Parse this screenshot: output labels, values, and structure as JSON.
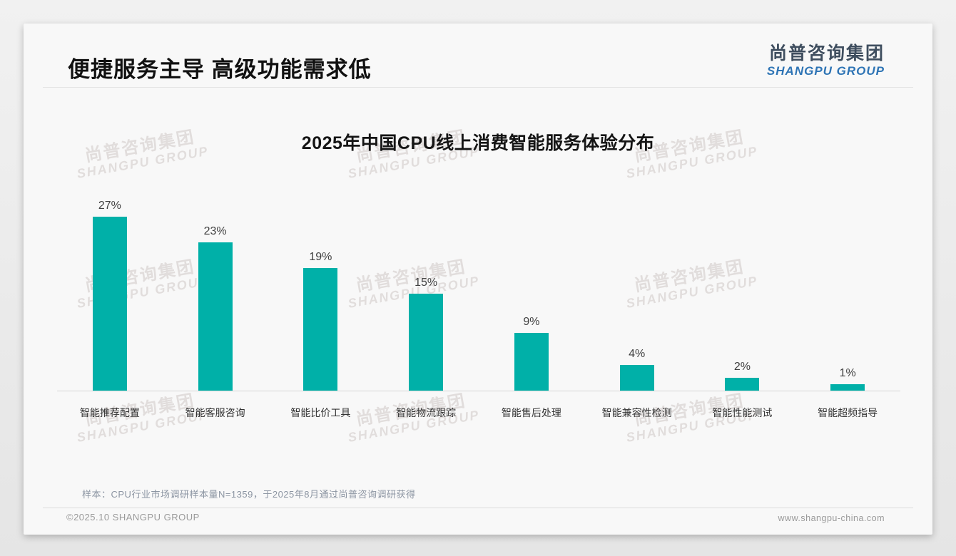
{
  "page": {
    "title": "便捷服务主导 高级功能需求低",
    "logo": {
      "cn": "尚普咨询集团",
      "en": "SHANGPU GROUP"
    },
    "watermark": {
      "line1": "尚普咨询集团",
      "line2": "SHANGPU GROUP"
    },
    "note": "样本：CPU行业市场调研样本量N=1359，于2025年8月通过尚普咨询调研获得",
    "footer": {
      "left": "©2025.10 SHANGPU GROUP",
      "right": "www.shangpu-china.com"
    }
  },
  "chart_data": {
    "type": "bar",
    "title": "2025年中国CPU线上消费智能服务体验分布",
    "categories": [
      "智能推荐配置",
      "智能客服咨询",
      "智能比价工具",
      "智能物流跟踪",
      "智能售后处理",
      "智能兼容性检测",
      "智能性能测试",
      "智能超频指导"
    ],
    "values": [
      27,
      23,
      19,
      15,
      9,
      4,
      2,
      1
    ],
    "value_labels": [
      "27%",
      "23%",
      "19%",
      "15%",
      "9%",
      "4%",
      "2%",
      "1%"
    ],
    "bar_color": "#00b0a8",
    "xlabel": "",
    "ylabel": "",
    "ylim": [
      0,
      30
    ],
    "grid": false,
    "legend": "none"
  }
}
